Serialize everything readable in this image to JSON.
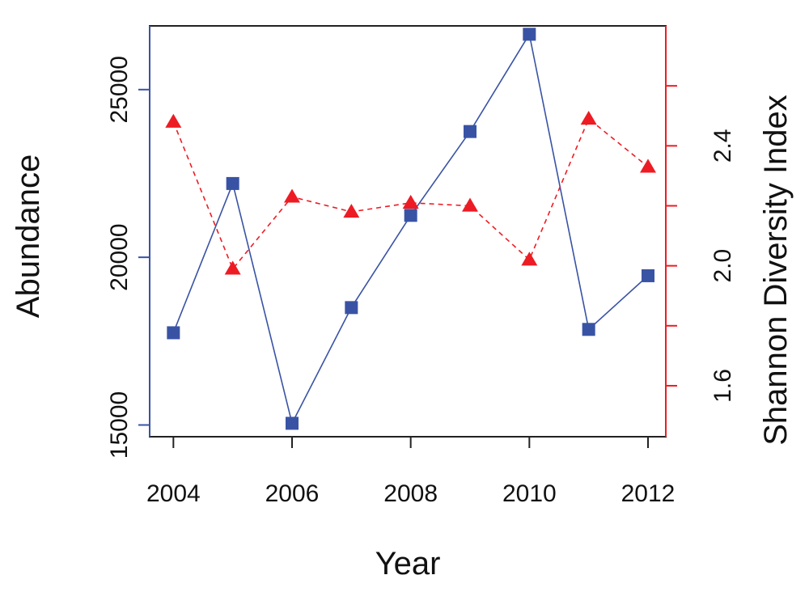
{
  "chart_data": {
    "type": "line",
    "xlabel": "Year",
    "ylabel_left": "Abundance",
    "ylabel_right": "Shannon Diversity Index",
    "x": [
      2004,
      2005,
      2006,
      2007,
      2008,
      2009,
      2010,
      2011,
      2012
    ],
    "x_ticks": [
      "2004",
      "2006",
      "2008",
      "2010",
      "2012"
    ],
    "xlim": [
      2003.6,
      2012.3
    ],
    "y_left": {
      "lim": [
        14650,
        26900
      ],
      "ticks": [
        15000,
        20000,
        25000
      ],
      "tick_labels": [
        "15000",
        "20000",
        "25000"
      ]
    },
    "y_right": {
      "lim": [
        1.43,
        2.8
      ],
      "ticks": [
        1.6,
        1.8,
        2.0,
        2.2,
        2.4,
        2.6
      ],
      "tick_labels": [
        "1.6",
        "",
        "2.0",
        "",
        "2.4",
        ""
      ]
    },
    "series": [
      {
        "axis": "left",
        "marker": "square",
        "line": "solid",
        "color": "#3953a4",
        "values": [
          17750,
          22200,
          15050,
          18500,
          21250,
          23750,
          26650,
          17850,
          19450
        ]
      },
      {
        "axis": "right",
        "marker": "triangle",
        "line": "dashed",
        "color": "#ed1c24",
        "values": [
          2.48,
          1.99,
          2.23,
          2.18,
          2.21,
          2.2,
          2.02,
          2.49,
          2.33
        ]
      }
    ],
    "legend": "none",
    "grid": false
  }
}
